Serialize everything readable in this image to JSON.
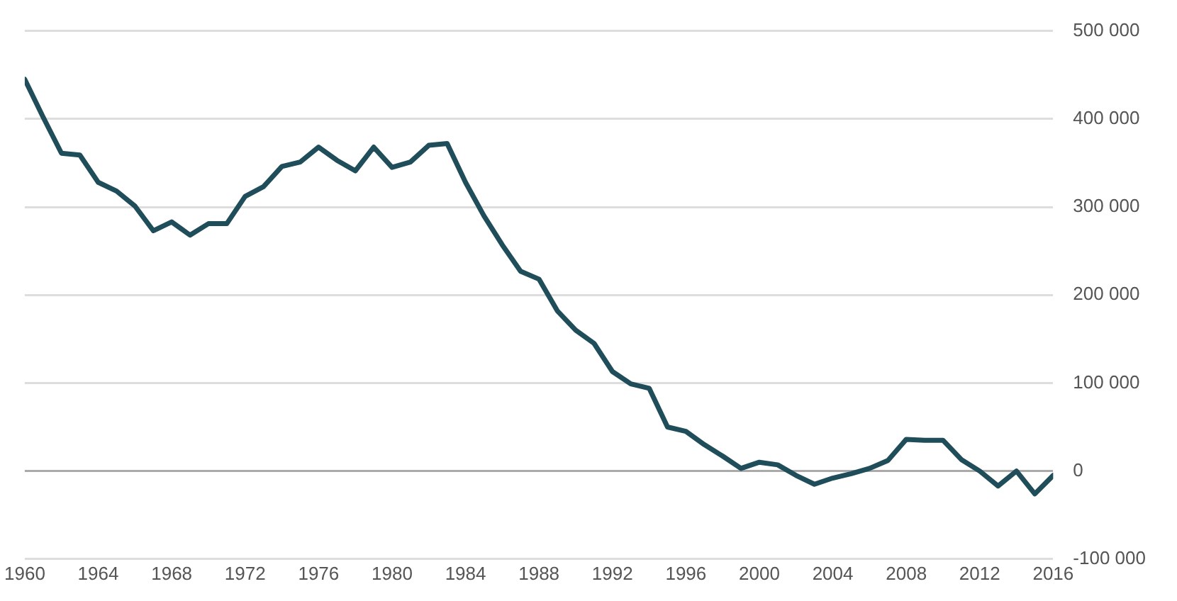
{
  "chart_data": {
    "type": "line",
    "color": "#1f4e5a",
    "grid": "y",
    "marker": "none",
    "line_style": "solid",
    "x": [
      1960,
      1961,
      1962,
      1963,
      1964,
      1965,
      1966,
      1967,
      1968,
      1969,
      1970,
      1971,
      1972,
      1973,
      1974,
      1975,
      1976,
      1977,
      1978,
      1979,
      1980,
      1981,
      1982,
      1983,
      1984,
      1985,
      1986,
      1987,
      1988,
      1989,
      1990,
      1991,
      1992,
      1993,
      1994,
      1995,
      1996,
      1997,
      1998,
      1999,
      2000,
      2001,
      2002,
      2003,
      2004,
      2005,
      2006,
      2007,
      2008,
      2009,
      2010,
      2011,
      2012,
      2013,
      2014,
      2015,
      2016
    ],
    "values": [
      445000,
      402000,
      361000,
      359000,
      328000,
      318000,
      301000,
      273000,
      283000,
      268000,
      281000,
      281000,
      312000,
      323000,
      346000,
      351000,
      368000,
      353000,
      341000,
      368000,
      345000,
      351000,
      370000,
      372000,
      328000,
      290000,
      257000,
      227000,
      218000,
      182000,
      160000,
      145000,
      113000,
      99000,
      94000,
      50000,
      45000,
      30000,
      17000,
      3000,
      10000,
      7000,
      -5000,
      -15000,
      -8000,
      -3000,
      3000,
      12000,
      36000,
      35000,
      35000,
      13000,
      0,
      -17000,
      0,
      -26000,
      -5000
    ],
    "xlim": [
      1960,
      2016
    ],
    "xticks": [
      1960,
      1964,
      1968,
      1972,
      1976,
      1980,
      1984,
      1988,
      1992,
      1996,
      2000,
      2004,
      2008,
      2012,
      2016
    ],
    "ylim": [
      -100000,
      500000
    ],
    "yticks": [
      {
        "value": -100000,
        "label": "-100 000"
      },
      0,
      {
        "value": 100000,
        "label": "100 000"
      },
      {
        "value": 200000,
        "label": "200 000"
      },
      {
        "value": 300000,
        "label": "300 000"
      },
      {
        "value": 400000,
        "label": "400 000"
      },
      {
        "value": 500000,
        "label": "500 000"
      }
    ]
  }
}
